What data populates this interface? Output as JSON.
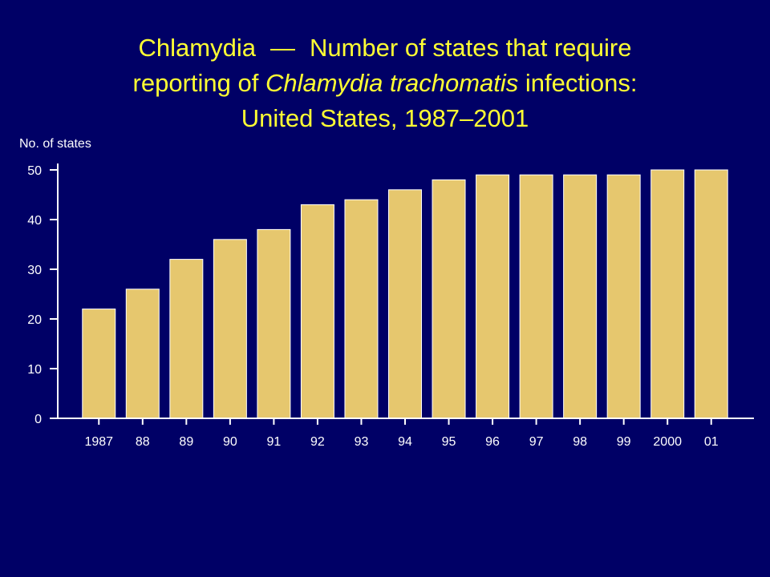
{
  "title": {
    "part1": "Chlamydia",
    "dash": "—",
    "part2": "Number of states that require",
    "part3": "reporting of ",
    "italic": "Chlamydia trachomatis",
    "part4": " infections:",
    "line3": "United States, 1987–2001"
  },
  "colors": {
    "background": "#000066",
    "title": "#ffff33",
    "bar": "#e6c76e",
    "axis": "#ffffff",
    "text": "#ffffff"
  },
  "chart_data": {
    "type": "bar",
    "ylabel": "No. of states",
    "xlabel": "",
    "ylim": [
      0,
      50
    ],
    "yticks": [
      0,
      10,
      20,
      30,
      40,
      50
    ],
    "categories": [
      "1987",
      "88",
      "89",
      "90",
      "91",
      "92",
      "93",
      "94",
      "95",
      "96",
      "97",
      "98",
      "99",
      "2000",
      "01"
    ],
    "values": [
      22,
      26,
      32,
      36,
      38,
      43,
      44,
      46,
      48,
      49,
      49,
      49,
      49,
      50,
      50
    ],
    "grid": false,
    "legend": "none"
  }
}
